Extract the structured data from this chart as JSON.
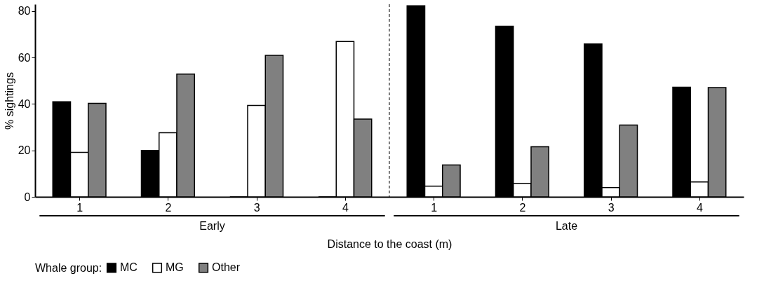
{
  "chart_data": {
    "type": "bar",
    "xlabel": "Distance to the coast (m)",
    "ylabel": "% sightings",
    "legend_title": "Whale group:",
    "categories": [
      "1",
      "2",
      "3",
      "4",
      "1",
      "2",
      "3",
      "4"
    ],
    "series": [
      {
        "name": "MC",
        "color": "#000000",
        "values": [
          41.0,
          20.0,
          0,
          0,
          82.3,
          73.5,
          65.9,
          47.2
        ]
      },
      {
        "name": "MG",
        "color": "#ffffff",
        "values": [
          19.2,
          27.6,
          39.4,
          66.9,
          4.6,
          5.8,
          4.0,
          6.4
        ]
      },
      {
        "name": "Other",
        "color": "#808080",
        "values": [
          40.3,
          52.9,
          61.0,
          33.5,
          13.7,
          21.6,
          30.9,
          47.1
        ]
      }
    ],
    "annotations": [
      "Early",
      "Late"
    ],
    "ref_lines": [
      {
        "axis": "x",
        "line_style": "dashed",
        "color": "#000000"
      }
    ],
    "ylim": [
      0,
      83
    ],
    "yticks": [
      0,
      20,
      40,
      60,
      80
    ],
    "grid": false,
    "legend": "bottom"
  }
}
